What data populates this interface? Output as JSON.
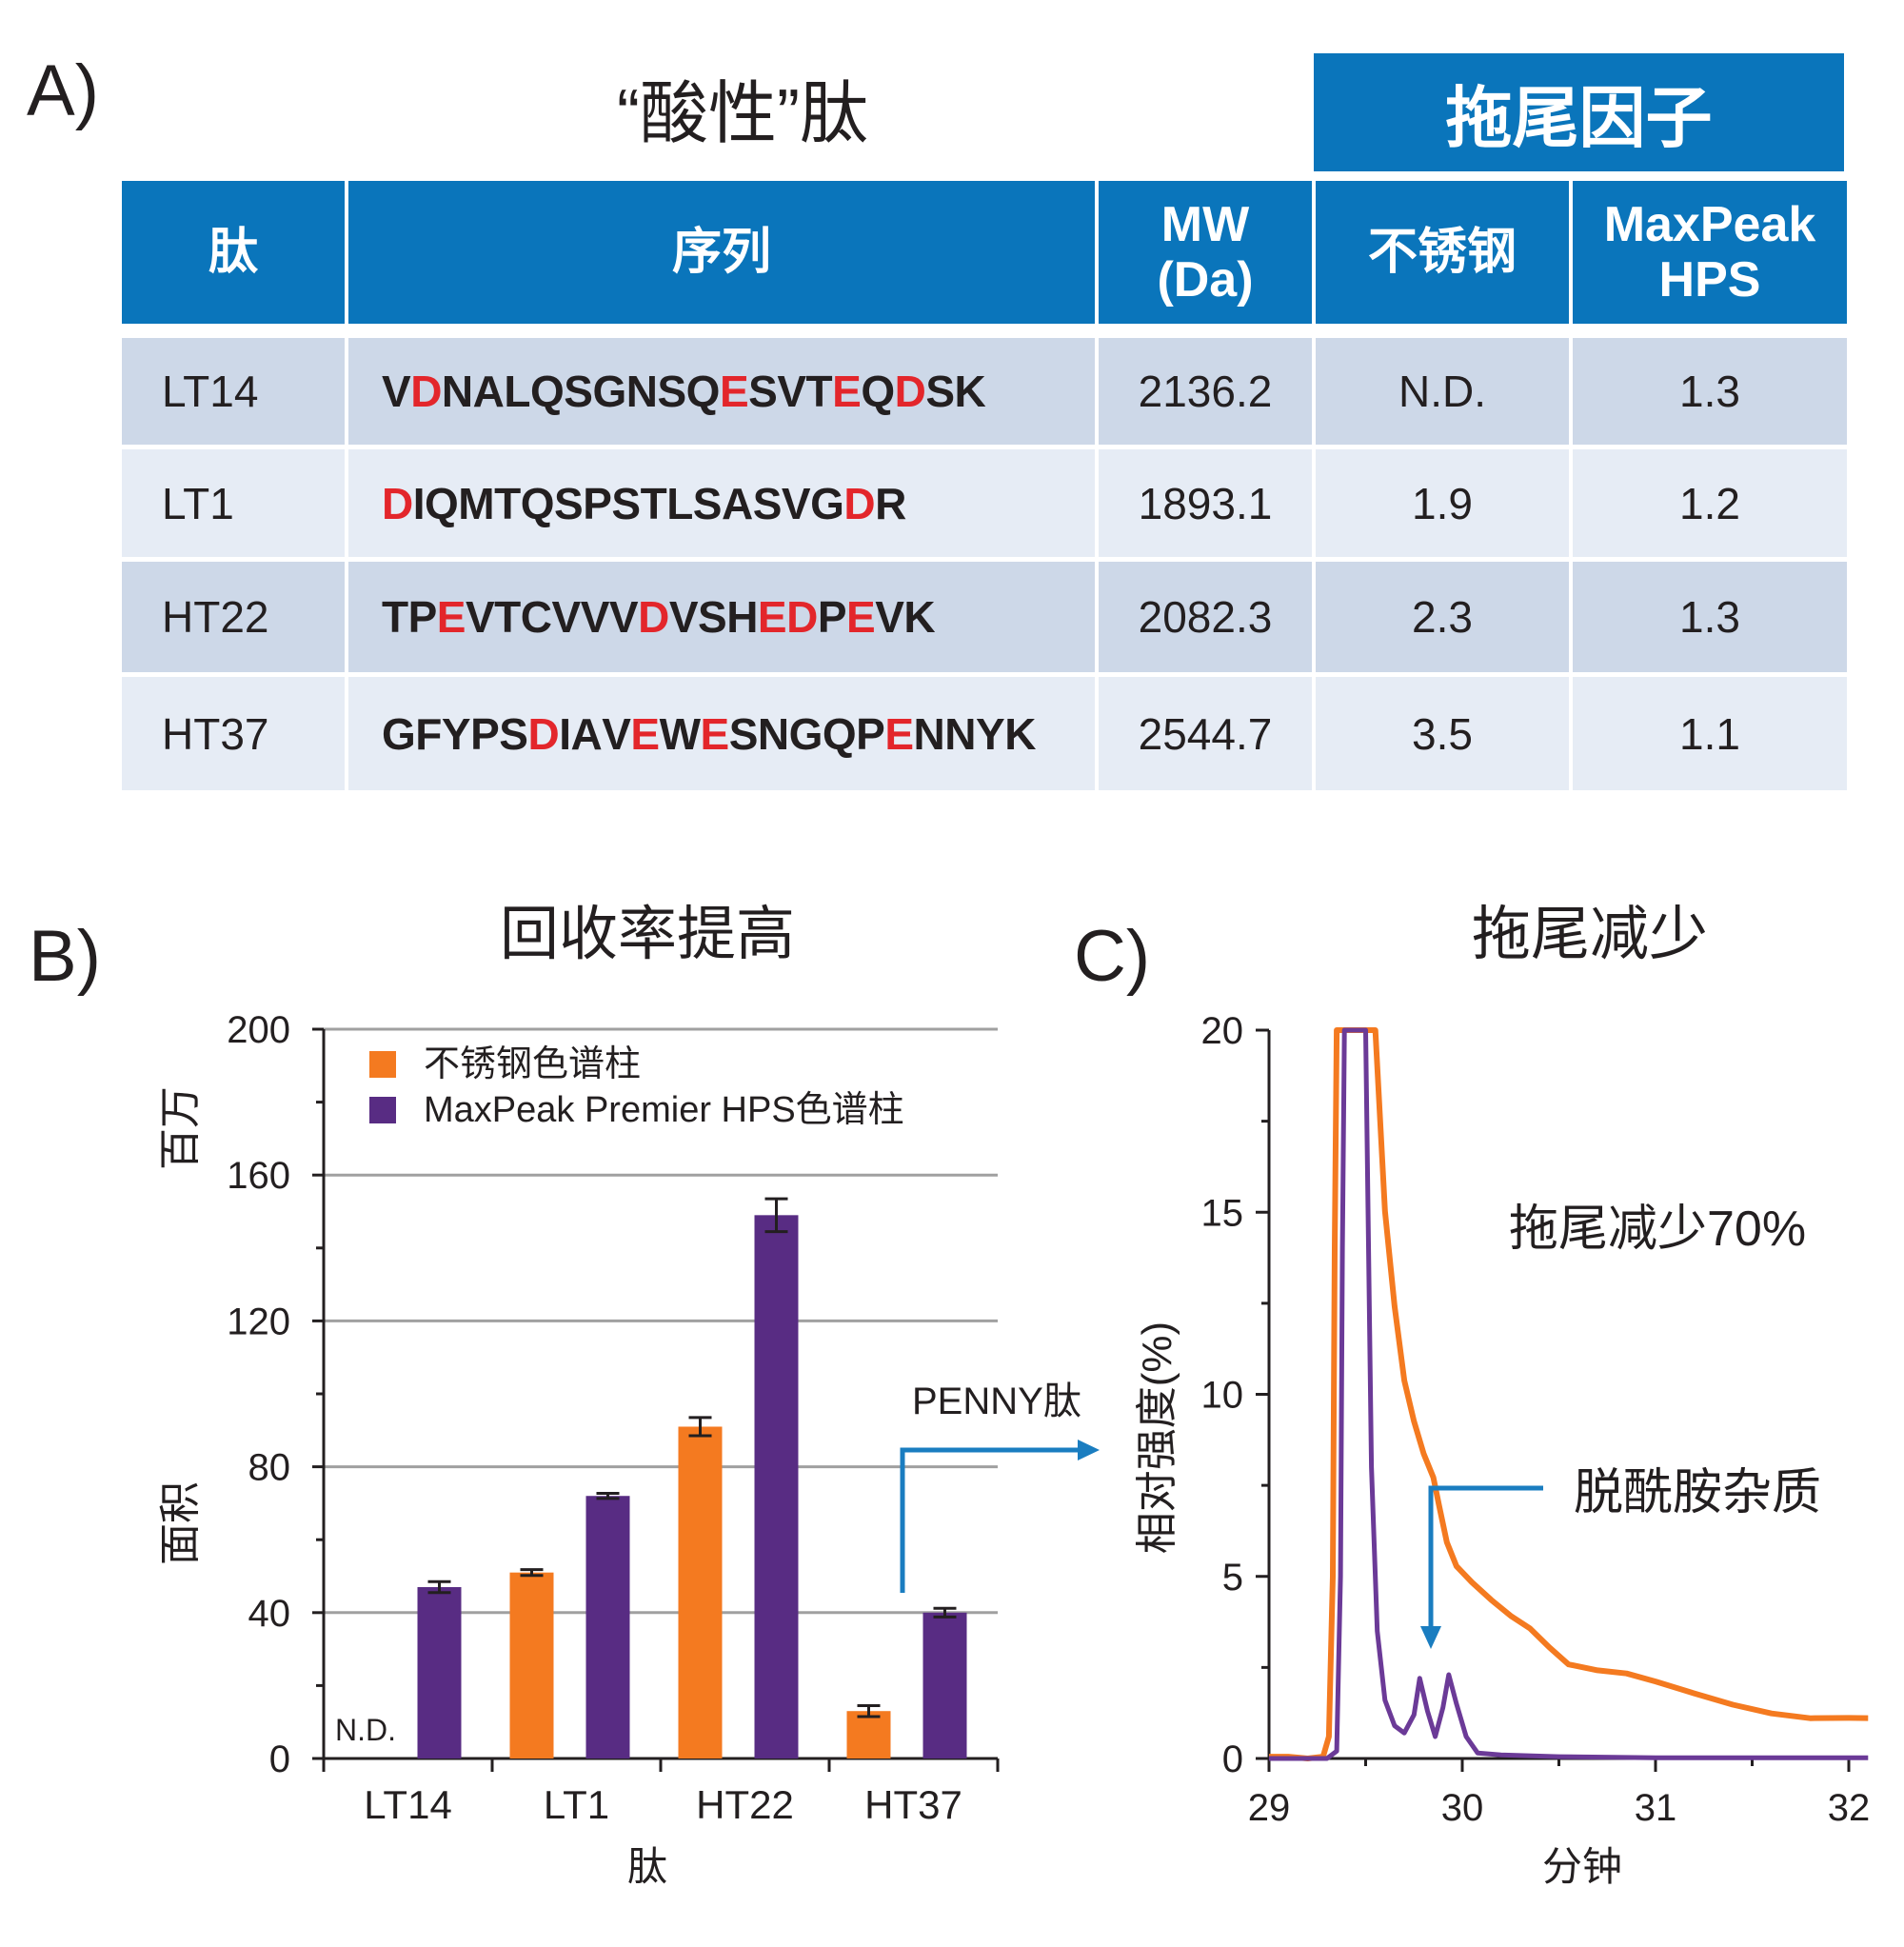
{
  "panel_a": {
    "label": "A)",
    "title": "“酸性”肽",
    "tailing_factor_header": "拖尾因子",
    "columns": [
      "肽",
      "序列",
      "MW\n(Da)",
      "不锈钢",
      "MaxPeak\nHPS"
    ],
    "highlight_residues": "DE",
    "colors": {
      "header": "#0a75bb",
      "row_odd": "#cdd8e8",
      "row_even": "#e6ecf5",
      "acidic_residue": "#e3262b"
    },
    "rows": [
      {
        "peptide": "LT14",
        "sequence": "VDNALQSGNSQESVTEQDSK",
        "mw": "2136.2",
        "stainless": "N.D.",
        "maxpeak": "1.3"
      },
      {
        "peptide": "LT1",
        "sequence": "DIQMTQSPSTLSASVGDR",
        "mw": "1893.1",
        "stainless": "1.9",
        "maxpeak": "1.2"
      },
      {
        "peptide": "HT22",
        "sequence": "TPEVTCVVVDVSHEDPEVK",
        "mw": "2082.3",
        "stainless": "2.3",
        "maxpeak": "1.3"
      },
      {
        "peptide": "HT37",
        "sequence": "GFYPSDIAVEWESNGQPENNYK",
        "mw": "2544.7",
        "stainless": "3.5",
        "maxpeak": "1.1"
      }
    ]
  },
  "chart_data": [
    {
      "panel_label": "B)",
      "type": "bar",
      "title": "回收率提高",
      "xlabel": "肽",
      "ylabel_top": "百万",
      "ylabel_bottom": "面积",
      "categories": [
        "LT14",
        "LT1",
        "HT22",
        "HT37"
      ],
      "ylim": [
        0,
        200
      ],
      "yticks": [
        0,
        40,
        80,
        120,
        160,
        200
      ],
      "grid": true,
      "legend_position": "top-left",
      "series": [
        {
          "name": "不锈钢色谱柱",
          "color": "#f47a20",
          "values": [
            null,
            51,
            91,
            13
          ],
          "errors": [
            null,
            0.8,
            2.5,
            1.5
          ]
        },
        {
          "name": "MaxPeak Premier HPS色谱柱",
          "color": "#582c83",
          "values": [
            47,
            72,
            149,
            40
          ],
          "errors": [
            1.5,
            0.7,
            4.5,
            1.2
          ]
        }
      ],
      "annotations": {
        "nd_label": "N.D.",
        "penny_label": "PENNY肽",
        "arrow_color": "#1a7dc0"
      }
    },
    {
      "panel_label": "C)",
      "type": "line",
      "title": "拖尾减少",
      "xlabel": "分钟",
      "ylabel": "相对强度(%)",
      "xlim": [
        29,
        32.1
      ],
      "ylim": [
        0,
        20
      ],
      "xticks": [
        29,
        30,
        31,
        32
      ],
      "yticks": [
        0,
        5,
        10,
        15,
        20
      ],
      "grid": false,
      "annotations": {
        "tailing_reduction": "拖尾减少70%",
        "impurity": "脱酰胺杂质",
        "arrow_color": "#1a7dc0"
      },
      "series": [
        {
          "color": "#f47a20",
          "x": [
            29.0,
            29.1,
            29.2,
            29.28,
            29.31,
            29.33,
            29.34,
            29.35,
            29.55,
            29.6,
            29.65,
            29.7,
            29.75,
            29.8,
            29.85,
            29.88,
            29.92,
            29.97,
            30.05,
            30.15,
            30.25,
            30.35,
            30.45,
            30.55,
            30.7,
            30.85,
            31.0,
            31.2,
            31.4,
            31.6,
            31.8,
            32.0,
            32.1
          ],
          "y": [
            0.05,
            0.05,
            0.0,
            0.05,
            0.6,
            5,
            14,
            20,
            20,
            15,
            12.5,
            10.5,
            9.3,
            8.3,
            7.6,
            6.9,
            6.0,
            5.4,
            4.9,
            4.3,
            3.8,
            3.5,
            3.1,
            2.7,
            2.5,
            2.3,
            2.0,
            1.7,
            1.5,
            1.35,
            1.2,
            1.1,
            1.0
          ]
        },
        {
          "color": "#6b3a97",
          "x": [
            29.0,
            29.3,
            29.35,
            29.37,
            29.38,
            29.39,
            29.5,
            29.53,
            29.56,
            29.6,
            29.65,
            29.7,
            29.75,
            29.78,
            29.82,
            29.86,
            29.9,
            29.93,
            29.97,
            30.02,
            30.08,
            30.2,
            30.5,
            31.0,
            32.1
          ],
          "y": [
            0.0,
            0.0,
            0.2,
            5,
            14,
            20,
            20,
            8,
            3.5,
            1.6,
            0.9,
            0.7,
            1.2,
            2.2,
            1.3,
            0.6,
            1.4,
            2.3,
            1.5,
            0.6,
            0.15,
            0.1,
            0.05,
            0.02,
            0.02
          ]
        }
      ]
    }
  ]
}
